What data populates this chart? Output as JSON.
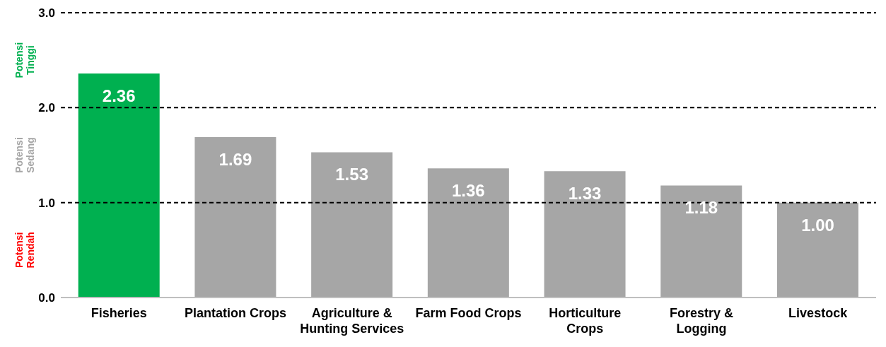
{
  "chart_data": {
    "type": "bar",
    "categories": [
      "Fisheries",
      "Plantation Crops",
      "Agriculture & Hunting Services",
      "Farm Food Crops",
      "Horticulture Crops",
      "Forestry & Logging",
      "Livestock"
    ],
    "values": [
      2.36,
      1.69,
      1.53,
      1.36,
      1.33,
      1.18,
      1.0
    ],
    "colors": [
      "#00b050",
      "#a6a6a6",
      "#a6a6a6",
      "#a6a6a6",
      "#a6a6a6",
      "#a6a6a6",
      "#a6a6a6"
    ],
    "value_labels": [
      "2.36",
      "1.69",
      "1.53",
      "1.36",
      "1.33",
      "1.18",
      "1.00"
    ],
    "ylim": [
      0,
      3
    ],
    "yticks": [
      {
        "value": 0,
        "label": "0.0"
      },
      {
        "value": 1,
        "label": "1.0"
      },
      {
        "value": 2,
        "label": "2.0"
      },
      {
        "value": 3,
        "label": "3.0"
      }
    ],
    "grid": "y",
    "annotations": [
      "Potensi Tinggi",
      "Potensi Sedang",
      "Potensi Rendah"
    ]
  }
}
